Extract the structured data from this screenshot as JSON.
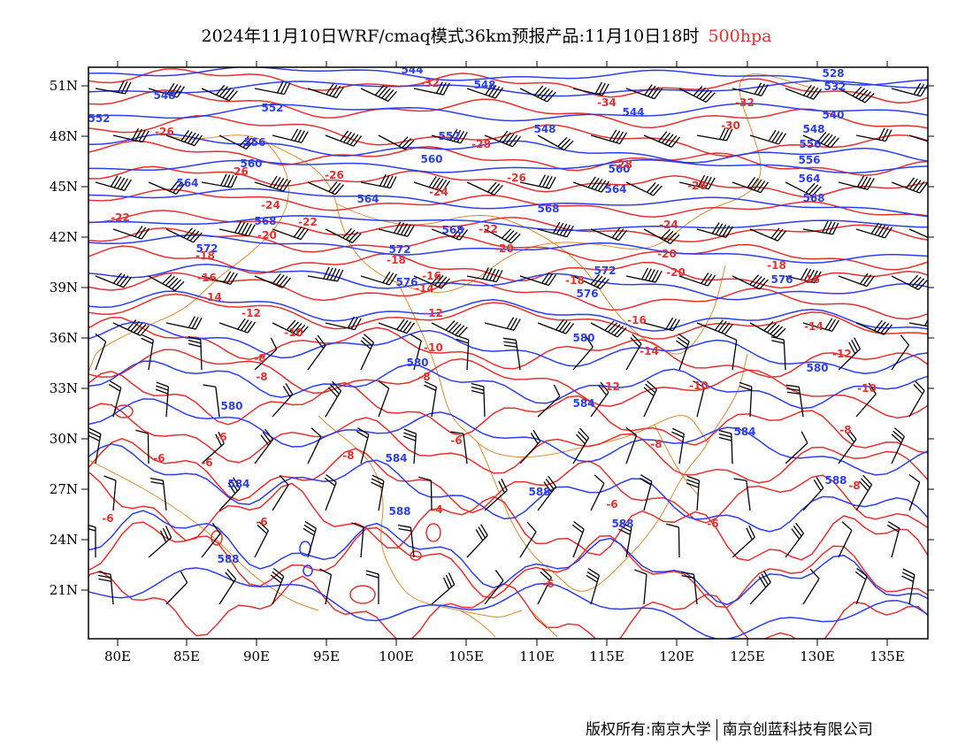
{
  "title": {
    "main": "2024年11月10日WRF/cmaq模式36km预报产品:11月10日18时",
    "level": "500hpa"
  },
  "footer": {
    "copyright": "版权所有:南京大学",
    "company": "南京创蓝科技有限公司"
  },
  "colors": {
    "height_contour": "#2b3ef2",
    "temperature_contour": "#e8302e",
    "boundaries": "#e08a2c",
    "wind_barbs": "#000000"
  },
  "axes": {
    "lon_ticks": [
      "80E",
      "85E",
      "90E",
      "95E",
      "100E",
      "105E",
      "110E",
      "115E",
      "120E",
      "125E",
      "130E",
      "135E"
    ],
    "lat_ticks": [
      "51N",
      "48N",
      "45N",
      "42N",
      "39N",
      "36N",
      "33N",
      "30N",
      "27N",
      "24N",
      "21N"
    ]
  },
  "contour_labels": {
    "height_dagpm": [
      "544",
      "548",
      "552",
      "556",
      "560",
      "564",
      "568",
      "572",
      "576",
      "580",
      "584",
      "588",
      "528",
      "532",
      "540"
    ],
    "temperature_c": [
      "-34",
      "-32",
      "-30",
      "-28",
      "-26",
      "-24",
      "-22",
      "-20",
      "-18",
      "-16",
      "-14",
      "-12",
      "-10",
      "-8",
      "-6",
      "-4"
    ]
  }
}
